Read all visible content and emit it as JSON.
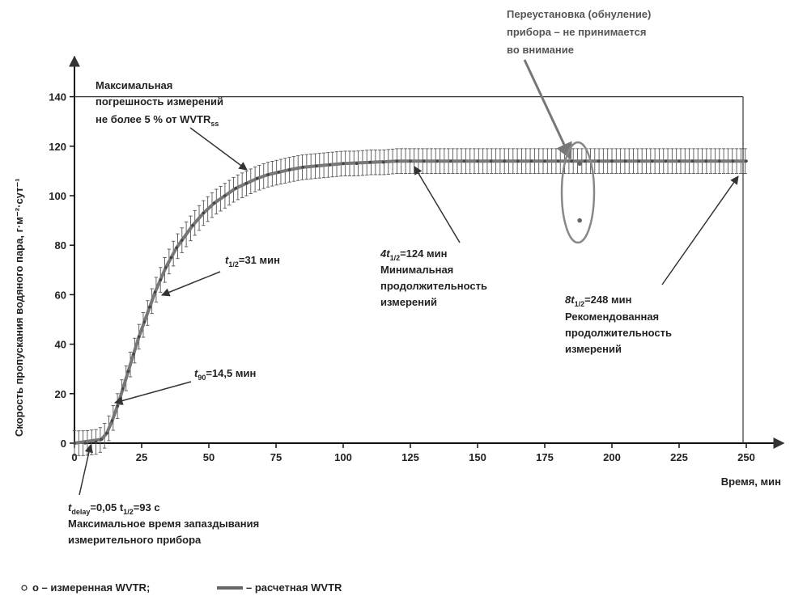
{
  "chart_data": {
    "type": "scatter",
    "title": "",
    "xlabel": "Время, мин",
    "ylabel": "Скорость пропускания водяного пара, г·м⁻²·сут⁻¹",
    "xlim": [
      0,
      260
    ],
    "ylim": [
      0,
      150
    ],
    "x_ticks": [
      "0",
      "25",
      "50",
      "75",
      "100",
      "125",
      "150",
      "175",
      "200",
      "225",
      "250"
    ],
    "y_ticks": [
      "0",
      "20",
      "40",
      "60",
      "80",
      "100",
      "120",
      "140"
    ],
    "reference_line": 140,
    "series": [
      {
        "name": "измеренная WVTR",
        "kind": "scatter-with-errorbars",
        "x": [
          0,
          4,
          8,
          10,
          12,
          14,
          16,
          18,
          20,
          22,
          24,
          26,
          28,
          30,
          32,
          34,
          36,
          38,
          40,
          44,
          48,
          52,
          56,
          60,
          64,
          68,
          72,
          76,
          80,
          85,
          90,
          95,
          100,
          105,
          110,
          115,
          120,
          125,
          130,
          135,
          140,
          145,
          150,
          155,
          160,
          165,
          170,
          175,
          180,
          185,
          190,
          195,
          200,
          205,
          210,
          215,
          220,
          225,
          230,
          235,
          240,
          245,
          250
        ],
        "y": [
          0,
          0,
          0.5,
          1.5,
          4,
          9,
          15,
          22,
          29,
          36,
          43,
          49,
          55,
          61,
          66,
          71,
          75,
          79,
          82,
          88,
          93,
          97,
          100,
          103,
          105,
          107,
          108.5,
          109.5,
          110.5,
          111.5,
          112,
          112.5,
          113,
          113,
          113.5,
          113.5,
          114,
          114,
          114,
          114,
          114,
          114,
          114,
          114,
          114,
          114,
          114,
          114,
          114,
          114,
          114,
          114,
          114,
          114,
          114,
          114,
          114,
          114,
          114,
          114,
          114,
          114,
          114
        ],
        "error": 5
      },
      {
        "name": "расчетная WVTR",
        "kind": "line",
        "x": [
          0,
          10,
          12,
          14,
          16,
          18,
          20,
          22,
          24,
          26,
          28,
          30,
          32,
          34,
          36,
          38,
          40,
          44,
          48,
          52,
          56,
          60,
          64,
          68,
          72,
          76,
          80,
          85,
          90,
          95,
          100,
          110,
          120,
          130,
          150,
          175,
          200,
          225,
          250
        ],
        "y": [
          0,
          1.5,
          4,
          9,
          15,
          22,
          29,
          36,
          43,
          49,
          55,
          61,
          66,
          71,
          75,
          79,
          82,
          88,
          93,
          97,
          100,
          103,
          105,
          107,
          108.5,
          109.5,
          110.5,
          111.5,
          112,
          112.5,
          113,
          113.5,
          114,
          114,
          114,
          114,
          114,
          114,
          114
        ]
      }
    ],
    "outliers": [
      {
        "x": 188,
        "y": 113
      },
      {
        "x": 188,
        "y": 90
      }
    ],
    "annotations": {
      "max_error": {
        "lines": [
          "Максимальная",
          "погрешность измерений",
          "не более 5 % от WVTR"
        ],
        "sub": "ss"
      },
      "t_half": {
        "main": "t",
        "sub": "1/2",
        "rest": "=31 мин"
      },
      "t_90": {
        "main": "t",
        "sub": "90",
        "rest": "=14,5 мин"
      },
      "four_t": {
        "pre": "4t",
        "sub": "1/2",
        "rest": "=124 мин",
        "lines": [
          "Минимальная",
          "продолжительность",
          "измерений"
        ]
      },
      "eight_t": {
        "pre": "8t",
        "sub": "1/2",
        "rest": "=248 мин",
        "lines": [
          "Рекомендованная",
          "продолжительность",
          "измерений"
        ]
      },
      "reset": {
        "lines": [
          "Переустановка (обнуление)",
          "прибора – не принимается",
          "во внимание"
        ]
      },
      "delay": {
        "pre": "t",
        "sub": "delay",
        "mid": "=0,05 t",
        "sub2": "1/2",
        "rest": "=93 с",
        "lines": [
          "Максимальное время запаздывания",
          "измерительного прибора"
        ]
      }
    },
    "legend": {
      "placement": "bottom-left",
      "marker_label": "о – измеренная WVTR;",
      "line_label": "– расчетная WVTR"
    }
  }
}
